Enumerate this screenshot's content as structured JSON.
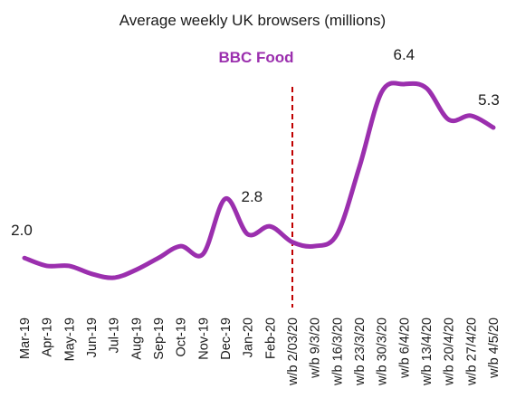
{
  "chart_data": {
    "type": "line",
    "title": "Average weekly UK browsers (millions)",
    "subtitle": "BBC Food",
    "xlabel": "",
    "ylabel": "",
    "ylim": [
      0.7,
      7.2
    ],
    "grid": false,
    "categories": [
      "Mar-19",
      "Apr-19",
      "May-19",
      "Jun-19",
      "Jul-19",
      "Aug-19",
      "Sep-19",
      "Oct-19",
      "Nov-19",
      "Dec-19",
      "Jan-20",
      "Feb-20",
      "w/b 2/03/20",
      "w/b 9/3/20",
      "w/b 16/3/20",
      "w/b 23/3/20",
      "w/b 30/3/20",
      "w/b 6/4/20",
      "w/b 13/4/20",
      "w/b 20/4/20",
      "w/b 27/4/20",
      "w/b 4/5/20"
    ],
    "series": [
      {
        "name": "",
        "color": "#9b2fae",
        "values": [
          2.0,
          1.8,
          1.8,
          1.6,
          1.5,
          1.7,
          2.0,
          2.3,
          2.1,
          3.5,
          2.6,
          2.8,
          2.4,
          2.3,
          2.6,
          4.3,
          6.2,
          6.4,
          6.3,
          5.5,
          5.6,
          5.3
        ]
      }
    ],
    "data_labels": [
      {
        "index": 0,
        "text": "2.0"
      },
      {
        "index": 11,
        "text": "2.8"
      },
      {
        "index": 17,
        "text": "6.4"
      },
      {
        "index": 21,
        "text": "5.3"
      }
    ],
    "annotations": [
      {
        "type": "vertical-dashed-line",
        "at": "w/b 2/03/20",
        "color": "#c00000"
      }
    ],
    "subtitle_color": "#9b2fae"
  }
}
